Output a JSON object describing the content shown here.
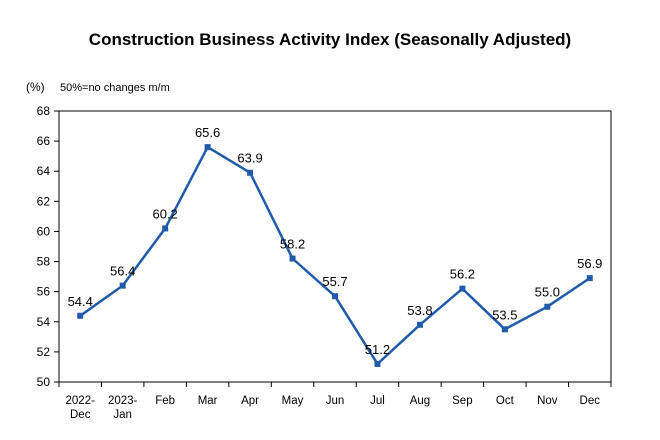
{
  "chart_data": {
    "type": "line",
    "title": "Construction Business Activity Index (Seasonally Adjusted)",
    "unit_label": "(%)",
    "annotation": "50%=no changes m/m",
    "categories": [
      [
        "2022-",
        "Dec"
      ],
      [
        "2023-",
        "Jan"
      ],
      [
        "Feb"
      ],
      [
        "Mar"
      ],
      [
        "Apr"
      ],
      [
        "May"
      ],
      [
        "Jun"
      ],
      [
        "Jul"
      ],
      [
        "Aug"
      ],
      [
        "Sep"
      ],
      [
        "Oct"
      ],
      [
        "Nov"
      ],
      [
        "Dec"
      ]
    ],
    "values": [
      54.4,
      56.4,
      60.2,
      65.6,
      63.9,
      58.2,
      55.7,
      51.2,
      53.8,
      56.2,
      53.5,
      55.0,
      56.9
    ],
    "data_labels": [
      "54.4",
      "56.4",
      "60.2",
      "65.6",
      "63.9",
      "58.2",
      "55.7",
      "51.2",
      "53.8",
      "56.2",
      "53.5",
      "55.0",
      "56.9"
    ],
    "ylim": [
      50,
      68
    ],
    "yticks": [
      50,
      52,
      54,
      56,
      58,
      60,
      62,
      64,
      66,
      68
    ],
    "line_color": "#1F5BAA",
    "grid": false,
    "legend": "none"
  }
}
